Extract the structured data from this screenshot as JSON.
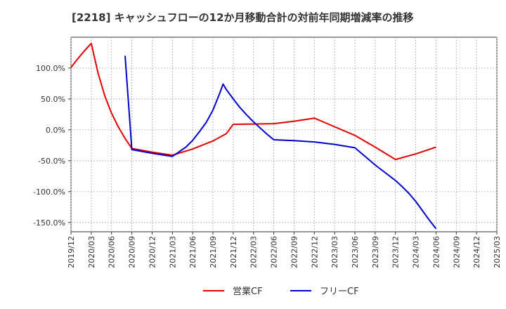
{
  "chart_data": {
    "type": "line",
    "title": "[2218]  キャッシュフローの12か月移動合計の対前年同期増減率の推移",
    "xlabel": "",
    "ylabel": "",
    "ylim": [
      -165,
      150
    ],
    "grid": true,
    "legend_position": "bottom-center",
    "y_ticks": [
      100,
      50,
      0,
      -50,
      -100,
      -150
    ],
    "y_tick_labels": [
      "100.0%",
      "50.0%",
      "0.0%",
      "-50.0%",
      "-100.0%",
      "-150.0%"
    ],
    "x_tick_labels": [
      "2019/12",
      "2020/03",
      "2020/06",
      "2020/09",
      "2020/12",
      "2021/03",
      "2021/06",
      "2021/09",
      "2021/12",
      "2022/03",
      "2022/06",
      "2022/09",
      "2022/12",
      "2023/03",
      "2023/06",
      "2023/09",
      "2023/12",
      "2024/03",
      "2024/06",
      "2024/09",
      "2024/12",
      "2025/03"
    ],
    "series": [
      {
        "name": "営業CF",
        "color": "#e00000",
        "points": [
          [
            0,
            101
          ],
          [
            1,
            115
          ],
          [
            2,
            128
          ],
          [
            3,
            140
          ],
          [
            4,
            92
          ],
          [
            5,
            55
          ],
          [
            6,
            27
          ],
          [
            7,
            5
          ],
          [
            8,
            -14
          ],
          [
            9,
            -30
          ],
          [
            12,
            -36
          ],
          [
            15,
            -41
          ],
          [
            18,
            -31
          ],
          [
            21,
            -18
          ],
          [
            23,
            -6
          ],
          [
            24,
            9
          ],
          [
            27,
            9.5
          ],
          [
            30,
            10
          ],
          [
            33,
            14
          ],
          [
            36,
            19
          ],
          [
            39,
            5
          ],
          [
            42,
            -9
          ],
          [
            45,
            -28
          ],
          [
            48,
            -48
          ],
          [
            51,
            -39
          ],
          [
            54,
            -28
          ]
        ]
      },
      {
        "name": "フリーCF",
        "color": "#0000cc",
        "points": [
          [
            8,
            120
          ],
          [
            9,
            -32
          ],
          [
            12,
            -38
          ],
          [
            15,
            -43
          ],
          [
            17,
            -28
          ],
          [
            18,
            -17
          ],
          [
            19,
            -3
          ],
          [
            20,
            12
          ],
          [
            21,
            32
          ],
          [
            22,
            59
          ],
          [
            22.5,
            74
          ],
          [
            23,
            65
          ],
          [
            24,
            50
          ],
          [
            25,
            36
          ],
          [
            26,
            24
          ],
          [
            27,
            13
          ],
          [
            28,
            3
          ],
          [
            29,
            -7
          ],
          [
            30,
            -16
          ],
          [
            33,
            -17.5
          ],
          [
            36,
            -19.5
          ],
          [
            39,
            -23.5
          ],
          [
            42,
            -29
          ],
          [
            45,
            -57
          ],
          [
            48,
            -82
          ],
          [
            49,
            -92
          ],
          [
            50,
            -103
          ],
          [
            51,
            -116
          ],
          [
            52,
            -131
          ],
          [
            53,
            -146
          ],
          [
            54,
            -160
          ]
        ]
      }
    ]
  }
}
